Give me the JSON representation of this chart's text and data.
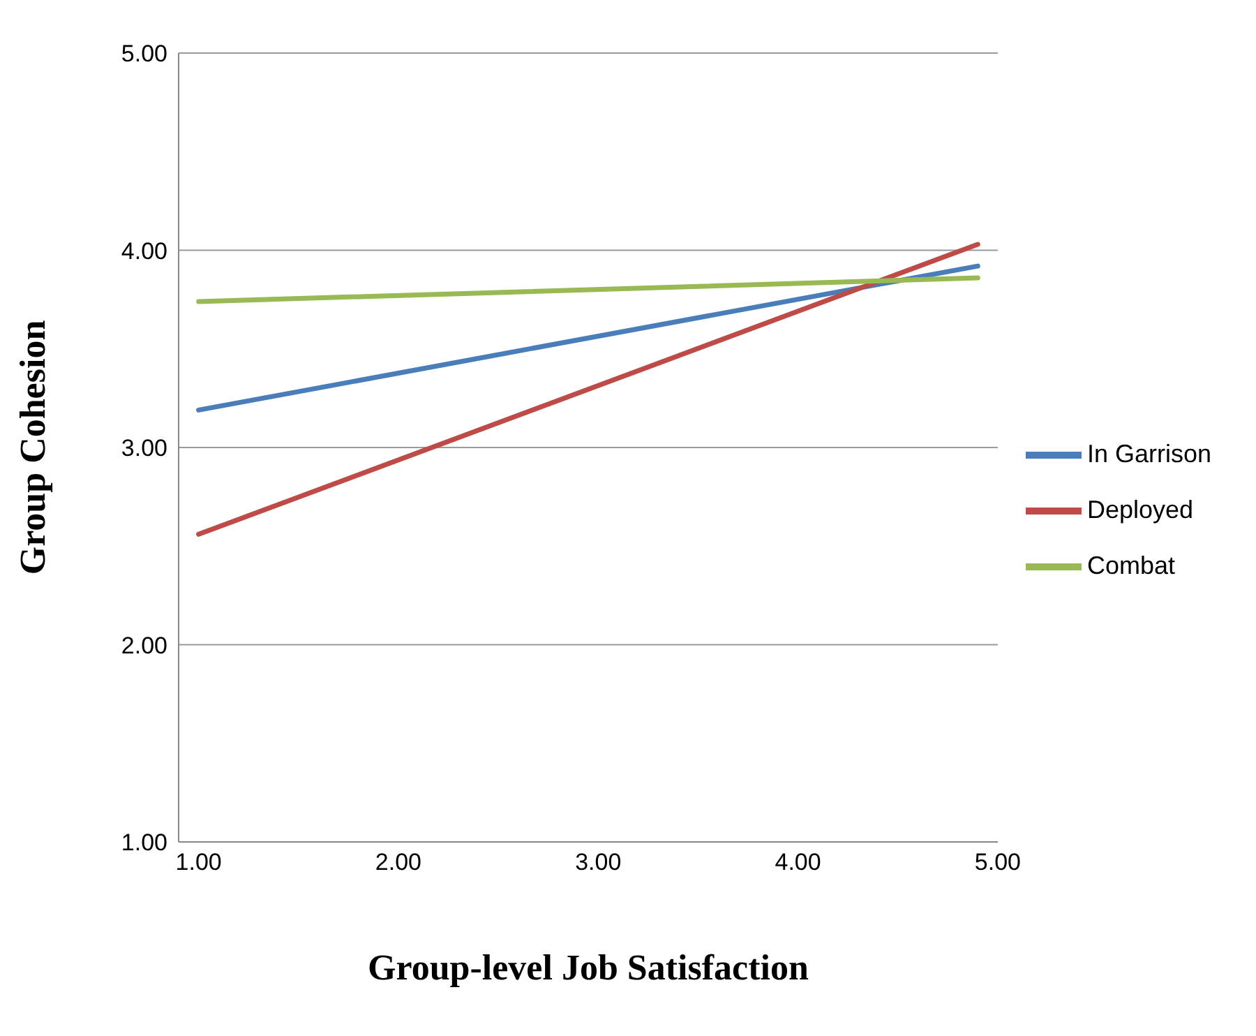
{
  "chart_data": {
    "type": "line",
    "xlabel": "Group-level Job Satisfaction",
    "ylabel": "Group Cohesion",
    "x": [
      1.0,
      4.9
    ],
    "series": [
      {
        "name": "In Garrison",
        "color": "#4a7ebb",
        "values": [
          3.19,
          3.92
        ]
      },
      {
        "name": "Deployed",
        "color": "#be4b48",
        "values": [
          2.56,
          4.03
        ]
      },
      {
        "name": "Combat",
        "color": "#98b954",
        "values": [
          3.74,
          3.86
        ]
      }
    ],
    "xlim": [
      0.9,
      5.0
    ],
    "xticks": [
      {
        "value": 1,
        "label": "1.00"
      },
      {
        "value": 2,
        "label": "2.00"
      },
      {
        "value": 3,
        "label": "3.00"
      },
      {
        "value": 4,
        "label": "4.00"
      },
      {
        "value": 5,
        "label": "5.00"
      }
    ],
    "ylim": [
      1,
      5
    ],
    "yticks": [
      {
        "value": 1,
        "label": "1.00"
      },
      {
        "value": 2,
        "label": "2.00"
      },
      {
        "value": 3,
        "label": "3.00"
      },
      {
        "value": 4,
        "label": "4.00"
      },
      {
        "value": 5,
        "label": "5.00"
      }
    ],
    "grid": "y",
    "legend": "right",
    "marker": "none",
    "line_style": "solid"
  }
}
